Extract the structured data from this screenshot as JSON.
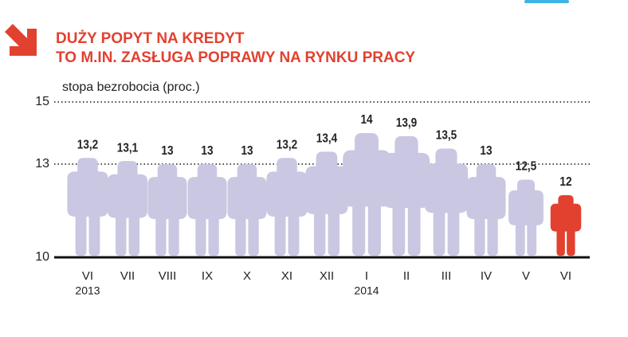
{
  "chart_data": {
    "type": "pictograph",
    "title": [
      "DUŻY POPYT NA KREDYT",
      "TO M.IN. ZASŁUGA POPRAWY NA RYNKU PRACY"
    ],
    "y_label": "stopa bezrobocia (proc.)",
    "categories": [
      "VI",
      "VII",
      "VIII",
      "IX",
      "X",
      "XI",
      "XII",
      "I",
      "II",
      "III",
      "IV",
      "V",
      "VI"
    ],
    "year_labels": [
      "2013",
      null,
      null,
      null,
      null,
      null,
      null,
      "2014",
      null,
      null,
      null,
      null,
      null
    ],
    "values": [
      13.2,
      13.1,
      13,
      13,
      13,
      13.2,
      13.4,
      14,
      13.9,
      13.5,
      13,
      12.5,
      12
    ],
    "value_labels": [
      "13,2",
      "13,1",
      "13",
      "13",
      "13",
      "13,2",
      "13,4",
      "14",
      "13,9",
      "13,5",
      "13",
      "12,5",
      "12"
    ],
    "colors": [
      "#c9c7e1",
      "#c9c7e1",
      "#c9c7e1",
      "#c9c7e1",
      "#c9c7e1",
      "#c9c7e1",
      "#c9c7e1",
      "#c9c7e1",
      "#c9c7e1",
      "#c9c7e1",
      "#c9c7e1",
      "#c9c7e1",
      "#e2412f"
    ],
    "ylim": [
      10,
      15
    ],
    "yticks": [
      10,
      13,
      15
    ],
    "grid": true
  }
}
